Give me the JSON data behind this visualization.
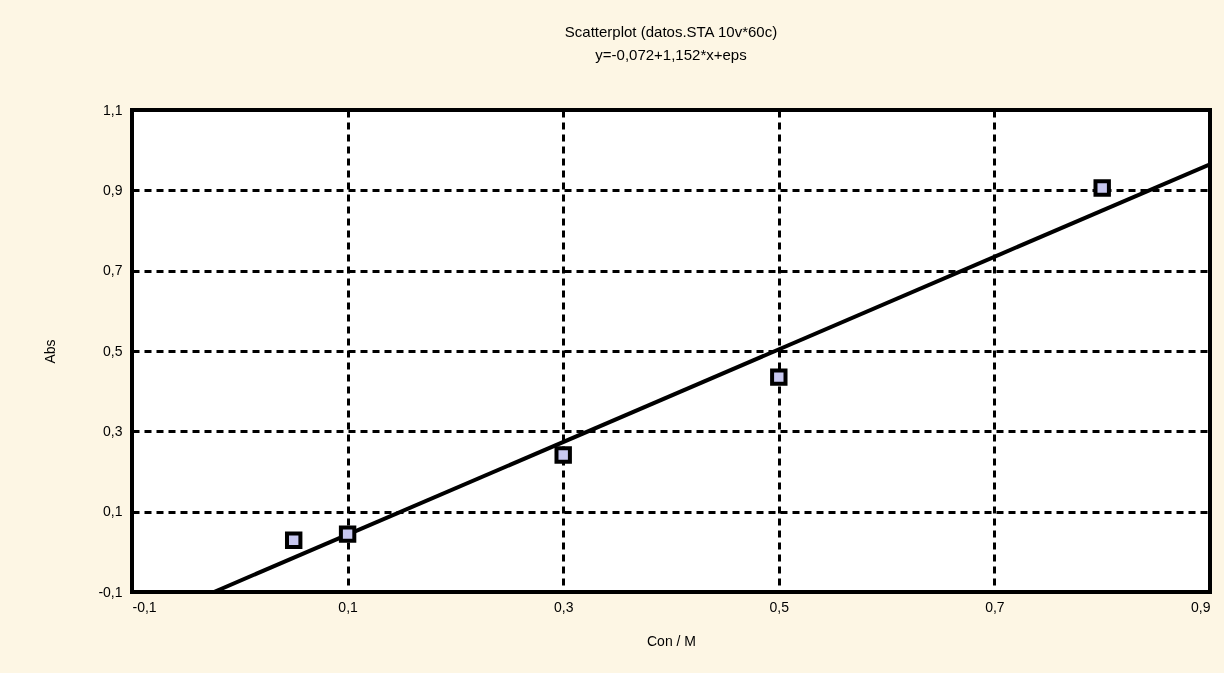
{
  "chart_data": {
    "type": "scatter",
    "title": "Scatterplot (datos.STA 10v*60c)",
    "subtitle": "y=-0,072+1,152*x+eps",
    "xlabel": "Con / M",
    "ylabel": "Abs",
    "series": [
      {
        "color": "#000000",
        "marker": "square",
        "x": [
          0.05,
          0.1,
          0.3,
          0.5,
          0.8
        ],
        "values": [
          0.029,
          0.044,
          0.241,
          0.435,
          0.906
        ]
      },
      {
        "type": "line",
        "color": "#000000",
        "marker": "none",
        "line_style": "solid",
        "x": [
          -0.024,
          0.9
        ],
        "values": [
          -0.1,
          0.965
        ]
      }
    ],
    "xlim": [
      -0.1,
      0.9
    ],
    "ylim": [
      -0.1,
      1.1
    ],
    "xticks": [
      {
        "value": -0.1,
        "label": "-0,1"
      },
      {
        "value": 0.1,
        "label": "0,1"
      },
      {
        "value": 0.3,
        "label": "0,3"
      },
      {
        "value": 0.5,
        "label": "0,5"
      },
      {
        "value": 0.7,
        "label": "0,7"
      },
      {
        "value": 0.9,
        "label": "0,9"
      }
    ],
    "yticks": [
      {
        "value": -0.1,
        "label": "-0,1"
      },
      {
        "value": 0.1,
        "label": "0,1"
      },
      {
        "value": 0.3,
        "label": "0,3"
      },
      {
        "value": 0.5,
        "label": "0,5"
      },
      {
        "value": 0.7,
        "label": "0,7"
      },
      {
        "value": 0.9,
        "label": "0,9"
      },
      {
        "value": 1.1,
        "label": "1,1"
      }
    ],
    "grid": true
  }
}
